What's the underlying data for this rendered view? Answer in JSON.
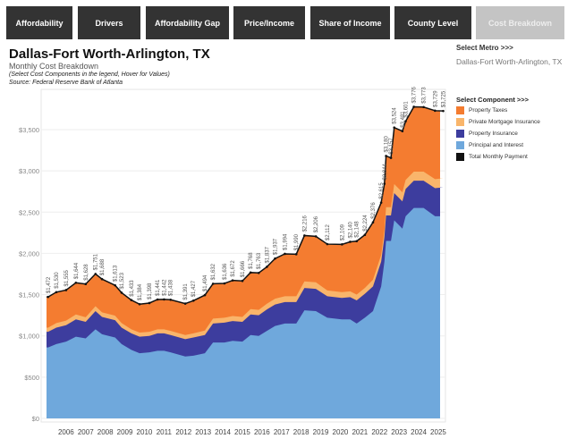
{
  "tabs": [
    {
      "label": "Affordability",
      "active": false
    },
    {
      "label": "Drivers",
      "active": false
    },
    {
      "label": "Affordability Gap",
      "active": false
    },
    {
      "label": "Price/Income",
      "active": false
    },
    {
      "label": "Share of Income",
      "active": false
    },
    {
      "label": "County Level",
      "active": false
    },
    {
      "label": "Cost Breakdown",
      "active": true
    }
  ],
  "header": {
    "title": "Dallas-Fort Worth-Arlington, TX",
    "subtitle": "Monthly Cost Breakdown",
    "instruction": "(Select Cost Components in the legend, Hover for Values)",
    "source": "Source: Federal Reserve Bank of Atlanta"
  },
  "metro_selector": {
    "label": "Select Metro >>>",
    "value": "Dallas-Fort Worth-Arlington, TX"
  },
  "legend": {
    "title": "Select Component >>>",
    "items": [
      {
        "label": "Property Taxes",
        "color": "#f47c30"
      },
      {
        "label": "Private Mortgage Insurance",
        "color": "#f9b56b"
      },
      {
        "label": "Property Insurance",
        "color": "#3d3d9e"
      },
      {
        "label": "Principal and Interest",
        "color": "#6fa8dc"
      },
      {
        "label": "Total Monthly Payment",
        "color": "#111111"
      }
    ]
  },
  "chart_data": {
    "type": "area",
    "stacked": true,
    "ylim": [
      0,
      3900
    ],
    "y_ticks": [
      "$0",
      "$500",
      "$1,000",
      "$1,500",
      "$2,000",
      "$2,500",
      "$3,000",
      "$3,500"
    ],
    "y_tick_values": [
      0,
      500,
      1000,
      1500,
      2000,
      2500,
      3000,
      3500
    ],
    "x_ticks": [
      "2006",
      "2007",
      "2008",
      "2009",
      "2010",
      "2011",
      "2012",
      "2013",
      "2014",
      "2015",
      "2016",
      "2017",
      "2018",
      "2019",
      "2020",
      "2021",
      "2022",
      "2023",
      "2024",
      "2025"
    ],
    "grid": true,
    "legend_position": "right",
    "series_order": [
      "Principal and Interest",
      "Property Insurance",
      "Private Mortgage Insurance",
      "Property Taxes"
    ],
    "points": [
      {
        "date": "2005-02",
        "total": 1472,
        "label": "$1,472",
        "pi": 860,
        "ins": 190,
        "pmi": 50
      },
      {
        "date": "2005-07",
        "total": 1530,
        "label": "$1,530",
        "pi": 900,
        "ins": 200,
        "pmi": 55
      },
      {
        "date": "2006-01",
        "total": 1555,
        "label": "$1,555",
        "pi": 930,
        "ins": 200,
        "pmi": 55
      },
      {
        "date": "2006-07",
        "total": 1644,
        "label": "$1,644",
        "pi": 990,
        "ins": 210,
        "pmi": 60
      },
      {
        "date": "2007-01",
        "total": 1628,
        "label": "$1,628",
        "pi": 970,
        "ins": 200,
        "pmi": 55
      },
      {
        "date": "2007-07",
        "total": 1751,
        "label": "$1,751",
        "pi": 1080,
        "ins": 220,
        "pmi": 60
      },
      {
        "date": "2007-11",
        "total": 1688,
        "label": "$1,688",
        "pi": 1020,
        "ins": 210,
        "pmi": 55
      },
      {
        "date": "2008-07",
        "total": 1613,
        "label": "$1,613",
        "pi": 980,
        "ins": 210,
        "pmi": 55
      },
      {
        "date": "2008-11",
        "total": 1523,
        "label": "$1,523",
        "pi": 900,
        "ins": 200,
        "pmi": 55
      },
      {
        "date": "2009-05",
        "total": 1433,
        "label": "$1,433",
        "pi": 830,
        "ins": 200,
        "pmi": 50
      },
      {
        "date": "2009-10",
        "total": 1384,
        "label": "$1,384",
        "pi": 790,
        "ins": 200,
        "pmi": 50
      },
      {
        "date": "2010-04",
        "total": 1398,
        "label": "$1,398",
        "pi": 800,
        "ins": 200,
        "pmi": 50
      },
      {
        "date": "2010-09",
        "total": 1441,
        "label": "$1,441",
        "pi": 820,
        "ins": 210,
        "pmi": 50
      },
      {
        "date": "2011-01",
        "total": 1442,
        "label": "$1,442",
        "pi": 820,
        "ins": 210,
        "pmi": 50
      },
      {
        "date": "2011-05",
        "total": 1438,
        "label": "$1,438",
        "pi": 800,
        "ins": 210,
        "pmi": 50
      },
      {
        "date": "2012-02",
        "total": 1391,
        "label": "$1,391",
        "pi": 750,
        "ins": 210,
        "pmi": 50
      },
      {
        "date": "2012-07",
        "total": 1427,
        "label": "$1,427",
        "pi": 760,
        "ins": 220,
        "pmi": 50
      },
      {
        "date": "2013-02",
        "total": 1494,
        "label": "$1,494",
        "pi": 790,
        "ins": 220,
        "pmi": 55
      },
      {
        "date": "2013-07",
        "total": 1632,
        "label": "$1,632",
        "pi": 920,
        "ins": 230,
        "pmi": 60
      },
      {
        "date": "2014-02",
        "total": 1636,
        "label": "$1,636",
        "pi": 920,
        "ins": 240,
        "pmi": 60
      },
      {
        "date": "2014-07",
        "total": 1672,
        "label": "$1,672",
        "pi": 940,
        "ins": 240,
        "pmi": 60
      },
      {
        "date": "2015-01",
        "total": 1666,
        "label": "$1,666",
        "pi": 930,
        "ins": 240,
        "pmi": 60
      },
      {
        "date": "2015-06",
        "total": 1768,
        "label": "$1,768",
        "pi": 1010,
        "ins": 250,
        "pmi": 65
      },
      {
        "date": "2015-11",
        "total": 1763,
        "label": "$1,763",
        "pi": 1000,
        "ins": 250,
        "pmi": 65
      },
      {
        "date": "2016-04",
        "total": 1837,
        "label": "$1,837",
        "pi": 1060,
        "ins": 260,
        "pmi": 70
      },
      {
        "date": "2016-09",
        "total": 1937,
        "label": "$1,937",
        "pi": 1120,
        "ins": 260,
        "pmi": 70
      },
      {
        "date": "2017-03",
        "total": 1994,
        "label": "$1,994",
        "pi": 1150,
        "ins": 260,
        "pmi": 70
      },
      {
        "date": "2017-10",
        "total": 1990,
        "label": "$1,990",
        "pi": 1150,
        "ins": 260,
        "pmi": 70
      },
      {
        "date": "2018-03",
        "total": 2216,
        "label": "$2,216",
        "pi": 1310,
        "ins": 270,
        "pmi": 80
      },
      {
        "date": "2018-10",
        "total": 2206,
        "label": "$2,206",
        "pi": 1300,
        "ins": 270,
        "pmi": 80
      },
      {
        "date": "2019-05",
        "total": 2112,
        "label": "$2,112",
        "pi": 1220,
        "ins": 260,
        "pmi": 70
      },
      {
        "date": "2020-02",
        "total": 2109,
        "label": "$2,109",
        "pi": 1200,
        "ins": 260,
        "pmi": 70
      },
      {
        "date": "2020-07",
        "total": 2140,
        "label": "$2,140",
        "pi": 1200,
        "ins": 270,
        "pmi": 70
      },
      {
        "date": "2020-11",
        "total": 2148,
        "label": "$2,148",
        "pi": 1150,
        "ins": 280,
        "pmi": 70
      },
      {
        "date": "2021-04",
        "total": 2224,
        "label": "$2,224",
        "pi": 1220,
        "ins": 290,
        "pmi": 70
      },
      {
        "date": "2021-09",
        "total": 2376,
        "label": "$2,376",
        "pi": 1300,
        "ins": 300,
        "pmi": 80
      },
      {
        "date": "2022-02",
        "total": 2615,
        "label": "$2,615",
        "pi": 1600,
        "ins": 300,
        "pmi": 80
      },
      {
        "date": "2022-04",
        "total": 2844,
        "label": "$2,844",
        "pi": 1900,
        "ins": 300,
        "pmi": 80
      },
      {
        "date": "2022-05",
        "total": 3180,
        "label": "$3,180",
        "pi": 2150,
        "ins": 310,
        "pmi": 100
      },
      {
        "date": "2022-08",
        "total": 3157,
        "label": "$3,157",
        "pi": 2150,
        "ins": 310,
        "pmi": 100
      },
      {
        "date": "2022-10",
        "total": 3524,
        "label": "$3,524",
        "pi": 2400,
        "ins": 330,
        "pmi": 110
      },
      {
        "date": "2023-03",
        "total": 3481,
        "label": "$3,481",
        "pi": 2300,
        "ins": 330,
        "pmi": 110
      },
      {
        "date": "2023-05",
        "total": 3601,
        "label": "$3,601",
        "pi": 2450,
        "ins": 330,
        "pmi": 110
      },
      {
        "date": "2023-10",
        "total": 3776,
        "label": "$3,776",
        "pi": 2550,
        "ins": 330,
        "pmi": 110
      },
      {
        "date": "2024-04",
        "total": 3773,
        "label": "$3,773",
        "pi": 2550,
        "ins": 330,
        "pmi": 110
      },
      {
        "date": "2024-11",
        "total": 3729,
        "label": "$3,729",
        "pi": 2450,
        "ins": 340,
        "pmi": 110
      },
      {
        "date": "2025-04",
        "total": 3725,
        "label": "$3,725",
        "pi": 2450,
        "ins": 350,
        "pmi": 110
      }
    ]
  }
}
